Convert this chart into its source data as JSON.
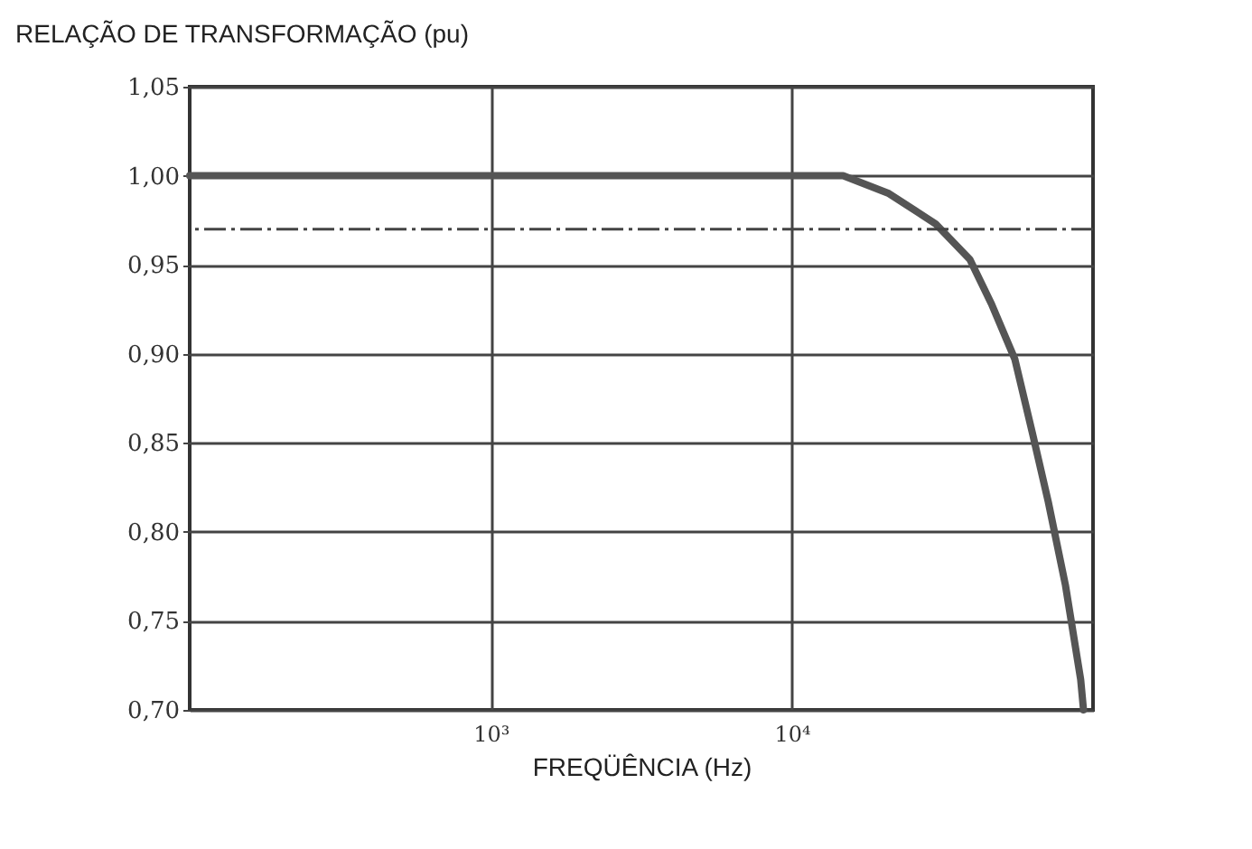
{
  "chart_data": {
    "type": "line",
    "ylabel": "RELAÇÃO DE TRANSFORMAÇÃO (pu)",
    "xlabel": "FREQÜÊNCIA (Hz)",
    "log": "x",
    "x": [
      100,
      1000,
      10000,
      14800,
      21000,
      30000,
      39000,
      46000,
      55000,
      63000,
      71000,
      81000,
      91000,
      93000
    ],
    "series": [
      {
        "color": "#555555",
        "values": [
          1.0,
          1.0,
          1.0,
          1.0,
          0.99,
          0.973,
          0.953,
          0.928,
          0.897,
          0.855,
          0.817,
          0.77,
          0.717,
          0.7
        ]
      }
    ],
    "xlim": [
      100,
      100000
    ],
    "xticks": [
      {
        "value": 1000,
        "label": "10³"
      },
      {
        "value": 10000,
        "label": "10⁴"
      }
    ],
    "ylim": [
      0.7,
      1.05
    ],
    "yticks": [
      {
        "value": 0.7,
        "label": "0,70"
      },
      {
        "value": 0.75,
        "label": "0,75"
      },
      {
        "value": 0.8,
        "label": "0,80"
      },
      {
        "value": 0.85,
        "label": "0,85"
      },
      {
        "value": 0.9,
        "label": "0,90"
      },
      {
        "value": 0.95,
        "label": "0,95"
      },
      {
        "value": 1.0,
        "label": "1,00"
      },
      {
        "value": 1.05,
        "label": "1,05"
      }
    ],
    "grid": true,
    "marker": "none",
    "line_style": "solid",
    "ref_lines": [
      {
        "axis": "y",
        "value": 0.97,
        "line_style": "dashed",
        "color": "#444444"
      }
    ]
  }
}
